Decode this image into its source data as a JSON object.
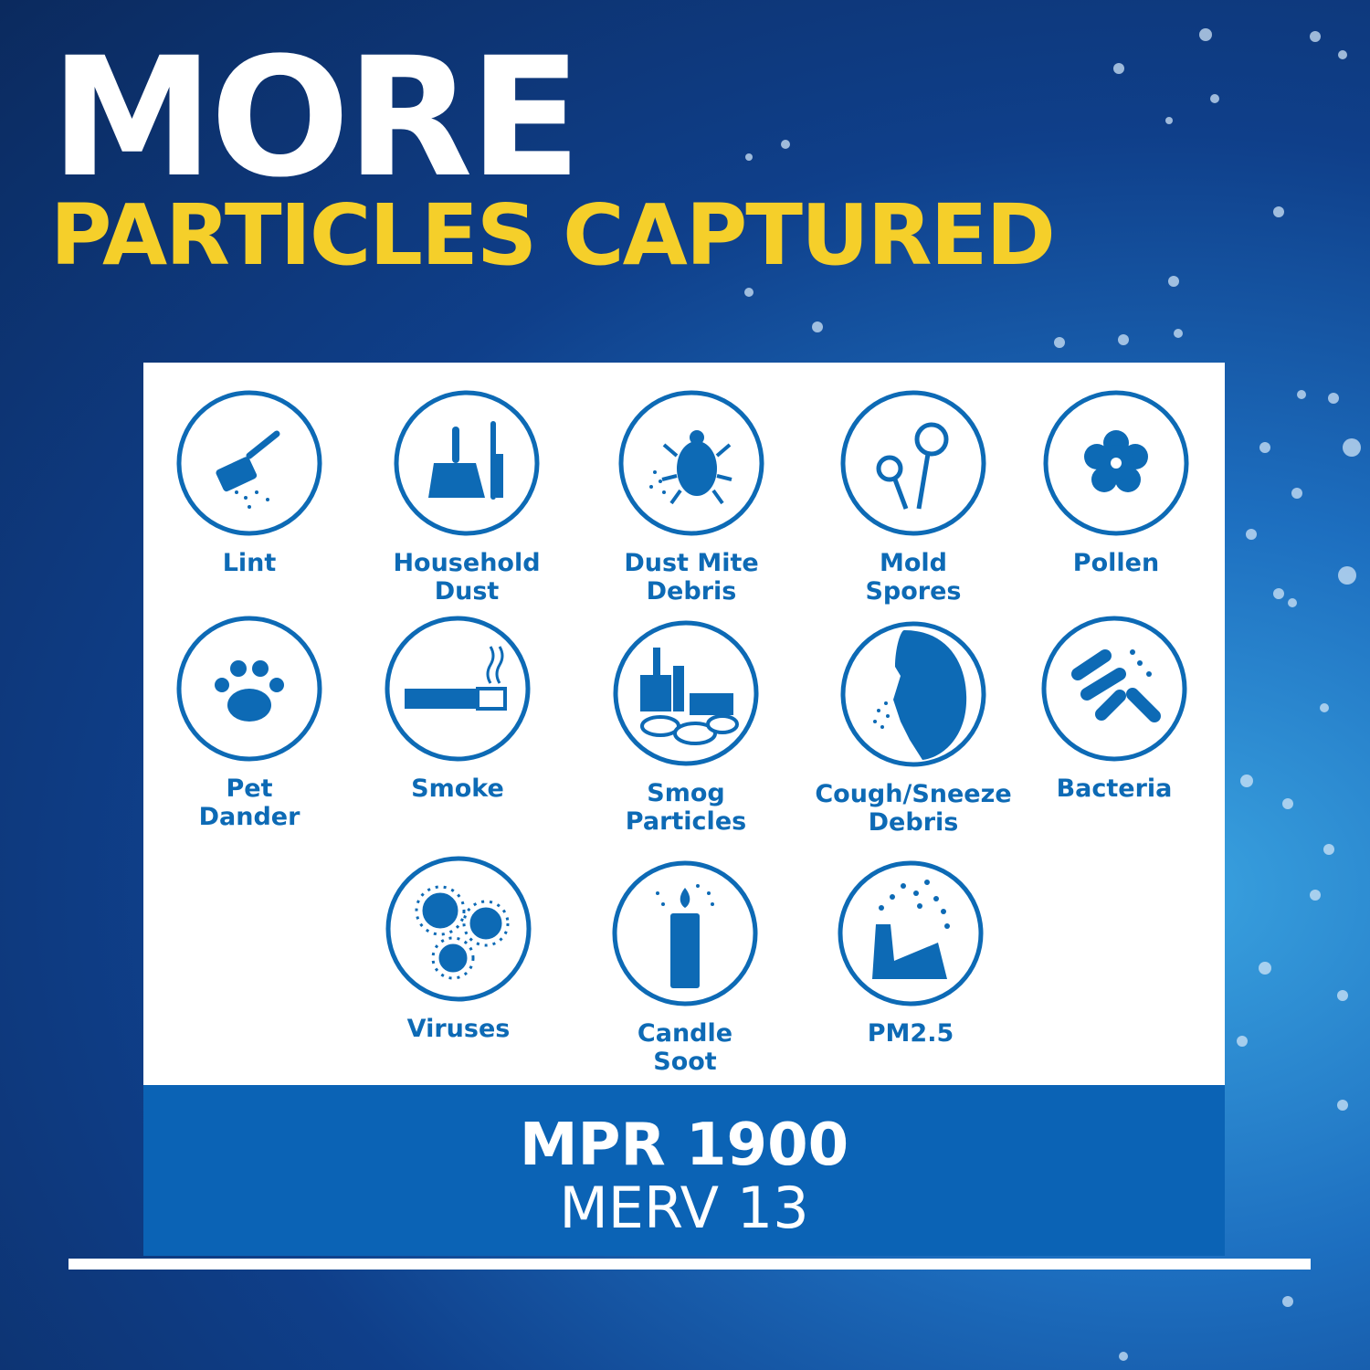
{
  "headline": {
    "line1": "MORE",
    "line2": "PARTICLES CAPTURED"
  },
  "colors": {
    "accent_blue": "#0d6ab5",
    "band_blue": "#0b63b5",
    "headline_yellow": "#f5cf2a"
  },
  "particles": [
    {
      "label1": "Lint",
      "label2": "",
      "icon": "lint-roller-icon"
    },
    {
      "label1": "Household",
      "label2": "Dust",
      "icon": "dustpan-brush-icon"
    },
    {
      "label1": "Dust Mite",
      "label2": "Debris",
      "icon": "dust-mite-icon"
    },
    {
      "label1": "Mold",
      "label2": "Spores",
      "icon": "mold-flowers-icon"
    },
    {
      "label1": "Pollen",
      "label2": "",
      "icon": "pollen-flower-icon"
    },
    {
      "label1": "Pet",
      "label2": "Dander",
      "icon": "paw-print-icon"
    },
    {
      "label1": "Smoke",
      "label2": "",
      "icon": "cigarette-icon"
    },
    {
      "label1": "Smog",
      "label2": "Particles",
      "icon": "city-smog-icon"
    },
    {
      "label1": "Cough/Sneeze",
      "label2": "Debris",
      "icon": "sneeze-face-icon"
    },
    {
      "label1": "Bacteria",
      "label2": "",
      "icon": "bacteria-icon"
    },
    {
      "label1": "Viruses",
      "label2": "",
      "icon": "virus-icon"
    },
    {
      "label1": "Candle",
      "label2": "Soot",
      "icon": "candle-icon"
    },
    {
      "label1": "PM2.5",
      "label2": "",
      "icon": "factory-smoke-icon"
    }
  ],
  "rating": {
    "mpr": "MPR 1900",
    "merv": "MERV 13"
  }
}
